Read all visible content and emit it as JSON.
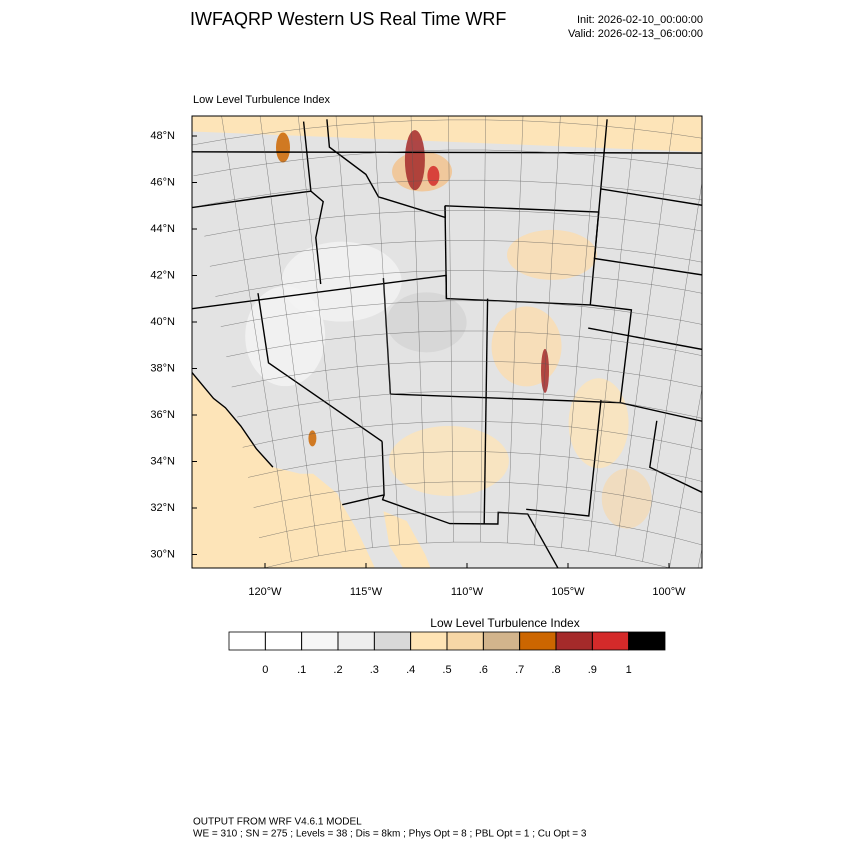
{
  "header": {
    "title": "IWFAQRP Western US Real Time WRF",
    "init": "Init: 2026-02-10_00:00:00",
    "valid": "Valid: 2026-02-13_06:00:00"
  },
  "map": {
    "label": "Low Level Turbulence Index",
    "lat_ticks": [
      {
        "value": 48,
        "label": "48°N"
      },
      {
        "value": 46,
        "label": "46°N"
      },
      {
        "value": 44,
        "label": "44°N"
      },
      {
        "value": 42,
        "label": "42°N"
      },
      {
        "value": 40,
        "label": "40°N"
      },
      {
        "value": 38,
        "label": "38°N"
      },
      {
        "value": 36,
        "label": "36°N"
      },
      {
        "value": 34,
        "label": "34°N"
      },
      {
        "value": 32,
        "label": "32°N"
      },
      {
        "value": 30,
        "label": "30°N"
      }
    ],
    "lon_ticks": [
      {
        "value": -120,
        "label": "120°W"
      },
      {
        "value": -115,
        "label": "115°W"
      },
      {
        "value": -110,
        "label": "110°W"
      },
      {
        "value": -105,
        "label": "105°W"
      },
      {
        "value": -100,
        "label": "100°W"
      }
    ]
  },
  "colorbar": {
    "title": "Low Level Turbulence Index",
    "colors": [
      "#ffffff",
      "#f7f7f7",
      "#eeeeee",
      "#d9d9d9",
      "#ffe4b5",
      "#f7d7a6",
      "#d2b48c",
      "#cc6600",
      "#a52a2a",
      "#d42a2a",
      "#000000"
    ],
    "ticks": [
      {
        "value": 0,
        "label": "0"
      },
      {
        "value": 0.1,
        "label": ".1"
      },
      {
        "value": 0.2,
        "label": ".2"
      },
      {
        "value": 0.3,
        "label": ".3"
      },
      {
        "value": 0.4,
        "label": ".4"
      },
      {
        "value": 0.5,
        "label": ".5"
      },
      {
        "value": 0.6,
        "label": ".6"
      },
      {
        "value": 0.7,
        "label": ".7"
      },
      {
        "value": 0.8,
        "label": ".8"
      },
      {
        "value": 0.9,
        "label": ".9"
      },
      {
        "value": 1,
        "label": "1"
      }
    ]
  },
  "footer": {
    "line1": "OUTPUT FROM WRF V4.6.1 MODEL",
    "line2": "WE = 310 ; SN = 275 ; Levels = 38 ; Dis = 8km ; Phys Opt = 8 ; PBL Opt = 1 ; Cu Opt = 3"
  }
}
